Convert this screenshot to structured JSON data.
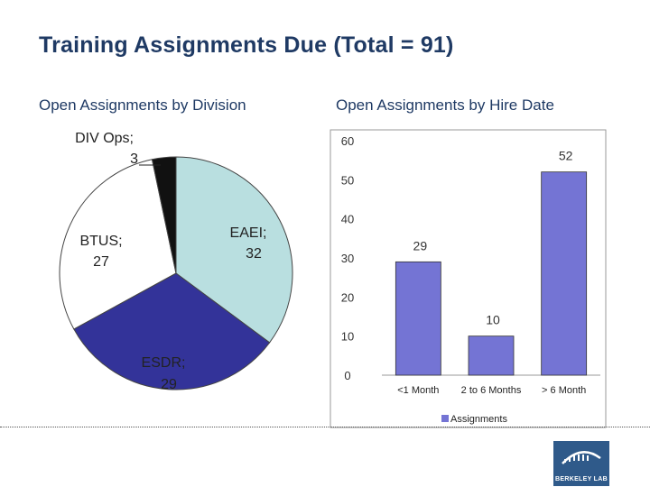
{
  "title": "Training Assignments Due (Total = 91)",
  "subtitles": {
    "left": "Open Assignments by Division",
    "right": "Open Assignments by Hire Date"
  },
  "colors": {
    "eaei": "#b9dfe0",
    "esdr": "#333399",
    "btus": "#ffffff",
    "div_ops": "#111111",
    "bars": "#7474d4",
    "title": "#1f3a64",
    "logo_bg": "#2f5a8a"
  },
  "logo": {
    "text": "BERKELEY LAB"
  },
  "chart_data": [
    {
      "type": "pie",
      "title": "Open Assignments by Division",
      "slices": [
        {
          "label": "EAEI; 32",
          "name": "EAEI",
          "value": 32,
          "color": "#b9dfe0"
        },
        {
          "label": "ESDR; 29",
          "name": "ESDR",
          "value": 29,
          "color": "#333399"
        },
        {
          "label": "BTUS; 27",
          "name": "BTUS",
          "value": 27,
          "color": "#ffffff"
        },
        {
          "label": "DIV Ops; 3",
          "name": "DIV Ops",
          "value": 3,
          "color": "#111111"
        }
      ]
    },
    {
      "type": "bar",
      "title": "Open Assignments by Hire Date",
      "categories": [
        "<1 Month",
        "2 to 6 Months",
        "> 6 Month"
      ],
      "series": [
        {
          "name": "Assignments",
          "values": [
            29,
            10,
            52
          ]
        }
      ],
      "ylim": [
        0,
        60
      ],
      "yticks": [
        "0",
        "10",
        "20",
        "30",
        "40",
        "50",
        "60"
      ],
      "legend": "bottom"
    }
  ]
}
